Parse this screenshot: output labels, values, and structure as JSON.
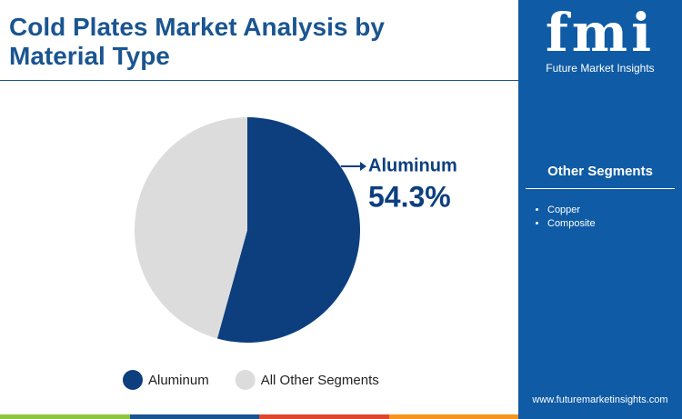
{
  "chart_data": {
    "type": "pie",
    "title": "Cold Plates Market Analysis by Material Type",
    "categories": [
      "Aluminum",
      "All Other Segments"
    ],
    "values": [
      54.3,
      45.7
    ],
    "value_labels": [
      "54.3%",
      null
    ],
    "colors": [
      "#0d3f7f",
      "#dcdcdc"
    ]
  },
  "sidebar": {
    "logo_mark": "fmi",
    "logo_text": "Future Market Insights",
    "heading": "Other Segments",
    "items": [
      "Copper",
      "Composite"
    ],
    "url": "www.futuremarketinsights.com"
  }
}
